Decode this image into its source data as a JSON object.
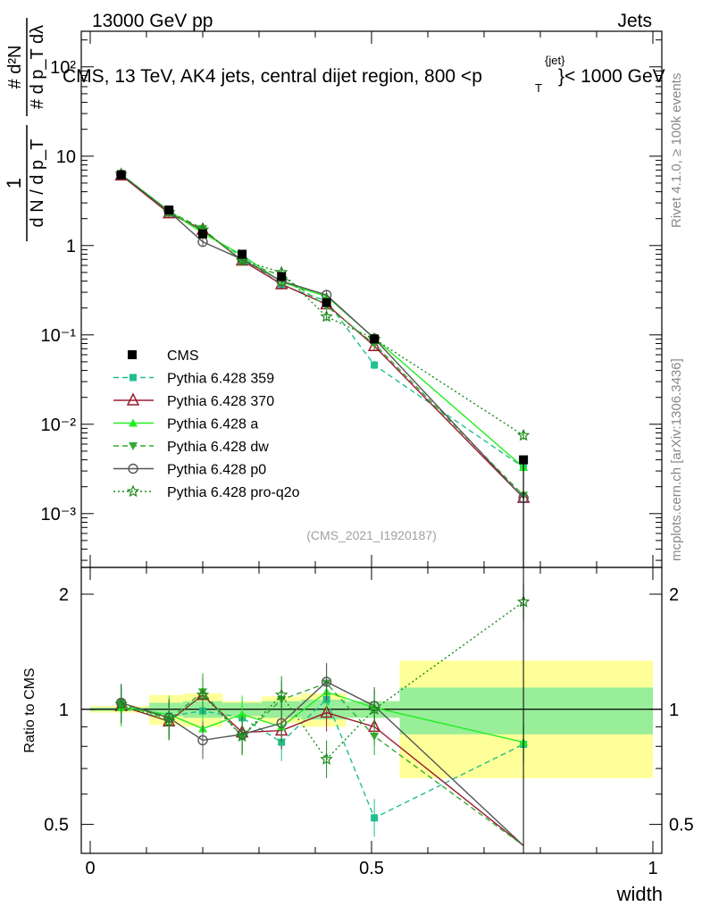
{
  "header": {
    "left": "13000 GeV pp",
    "right": "Jets"
  },
  "side_labels": {
    "rivet": "Rivet 4.1.0, ≥ 100k events",
    "mcplots": "mcplots.cern.ch [arXiv:1306.3436]"
  },
  "main_plot": {
    "title": "CMS, 13 TeV, AK4 jets, central dijet region, 800 <p",
    "title_sup": "{jet}",
    "title_sub": "T",
    "title_tail": "}< 1000 GeV",
    "watermark": "(CMS_2021_I1920187)",
    "ylabel_num": "# d²N",
    "ylabel_den": "# d p_T dλ",
    "ylabel_prefix_num": "1",
    "ylabel_prefix_den": "d N / d p_T",
    "yticks": [
      {
        "value": 100,
        "label": "10²"
      },
      {
        "value": 10,
        "label": "10"
      },
      {
        "value": 1,
        "label": "1"
      },
      {
        "value": 0.1,
        "label": "10⁻¹"
      },
      {
        "value": 0.01,
        "label": "10⁻²"
      },
      {
        "value": 0.001,
        "label": "10⁻³"
      }
    ]
  },
  "ratio_plot": {
    "ylabel": "Ratio to CMS",
    "yticks": [
      {
        "value": 0.5,
        "label": "0.5"
      },
      {
        "value": 1,
        "label": "1"
      },
      {
        "value": 2,
        "label": "2"
      }
    ]
  },
  "x_axis": {
    "label": "width",
    "ticks": [
      {
        "value": 0,
        "label": "0"
      },
      {
        "value": 0.5,
        "label": "0.5"
      },
      {
        "value": 1,
        "label": "1"
      }
    ]
  },
  "chart_data": {
    "type": "line",
    "title": "CMS, 13 TeV, AK4 jets, central dijet region, 800 < pT(jet) < 1000 GeV",
    "xlabel": "width",
    "ylabel": "1/N dN/dpT ... d²N/(dpT dλ)",
    "xlim": [
      0,
      1
    ],
    "ylim_main": [
      0.00025,
      250
    ],
    "ylim_ratio": [
      0.42,
      2.35
    ],
    "x": [
      0.055,
      0.14,
      0.2,
      0.27,
      0.34,
      0.42,
      0.505,
      0.77
    ],
    "data": {
      "name": "CMS",
      "values": [
        6.2,
        2.5,
        1.35,
        0.8,
        0.45,
        0.23,
        0.09,
        0.004
      ],
      "band_bins": [
        {
          "x0": 0.0,
          "x1": 0.105,
          "stat": 0.01,
          "tot": 0.02
        },
        {
          "x0": 0.105,
          "x1": 0.165,
          "stat": 0.04,
          "tot": 0.09
        },
        {
          "x0": 0.165,
          "x1": 0.235,
          "stat": 0.05,
          "tot": 0.1
        },
        {
          "x0": 0.235,
          "x1": 0.305,
          "stat": 0.04,
          "tot": 0.05
        },
        {
          "x0": 0.305,
          "x1": 0.375,
          "stat": 0.05,
          "tot": 0.08
        },
        {
          "x0": 0.375,
          "x1": 0.455,
          "stat": 0.06,
          "tot": 0.1
        },
        {
          "x0": 0.455,
          "x1": 0.55,
          "stat": 0.05,
          "tot": 0.05
        },
        {
          "x0": 0.55,
          "x1": 1.0,
          "stat": 0.14,
          "tot": 0.34
        }
      ]
    },
    "series": [
      {
        "name": "Pythia 6.428 359",
        "color": "#1fbf8f",
        "dash": "6,4",
        "marker": "square",
        "values": [
          6.3,
          2.4,
          1.4,
          0.75,
          0.36,
          0.24,
          0.046,
          0.0033
        ],
        "ratio": [
          1.03,
          0.96,
          0.99,
          0.95,
          0.82,
          1.06,
          0.52,
          0.81
        ]
      },
      {
        "name": "Pythia 6.428 370",
        "color": "#9b1b30",
        "dash": "",
        "marker": "triangle-open",
        "values": [
          6.1,
          2.3,
          1.5,
          0.68,
          0.37,
          0.22,
          0.075,
          0.0015
        ],
        "ratio": [
          1.02,
          0.93,
          1.09,
          0.87,
          0.88,
          0.98,
          0.9,
          0.37
        ]
      },
      {
        "name": "Pythia 6.428 a",
        "color": "#22ee22",
        "dash": "",
        "marker": "triangle",
        "values": [
          6.25,
          2.45,
          1.38,
          0.78,
          0.39,
          0.27,
          0.092,
          0.0033
        ],
        "ratio": [
          1.01,
          0.97,
          0.89,
          0.97,
          0.9,
          1.11,
          1.01,
          0.82
        ]
      },
      {
        "name": "Pythia 6.428 dw",
        "color": "#33aa33",
        "dash": "6,4",
        "marker": "triangle-down",
        "values": [
          6.3,
          2.4,
          1.55,
          0.66,
          0.46,
          0.21,
          0.079,
          0.0016
        ],
        "ratio": [
          1.04,
          0.94,
          1.11,
          0.85,
          1.06,
          1.17,
          0.85,
          0.4
        ]
      },
      {
        "name": "Pythia 6.428 p0",
        "color": "#555555",
        "dash": "",
        "marker": "circle-open",
        "values": [
          6.2,
          2.4,
          1.1,
          0.7,
          0.4,
          0.28,
          0.091,
          0.0015
        ],
        "ratio": [
          1.04,
          0.95,
          0.83,
          0.86,
          0.92,
          1.18,
          1.02,
          0.37
        ]
      },
      {
        "name": "Pythia 6.428 pro-q2o",
        "color": "#1a8a1a",
        "dash": "2,3",
        "marker": "star",
        "values": [
          6.3,
          2.35,
          1.5,
          0.68,
          0.5,
          0.16,
          0.09,
          0.0075
        ],
        "ratio": [
          1.03,
          0.93,
          1.09,
          0.85,
          1.09,
          0.74,
          1.0,
          1.91
        ]
      }
    ]
  }
}
